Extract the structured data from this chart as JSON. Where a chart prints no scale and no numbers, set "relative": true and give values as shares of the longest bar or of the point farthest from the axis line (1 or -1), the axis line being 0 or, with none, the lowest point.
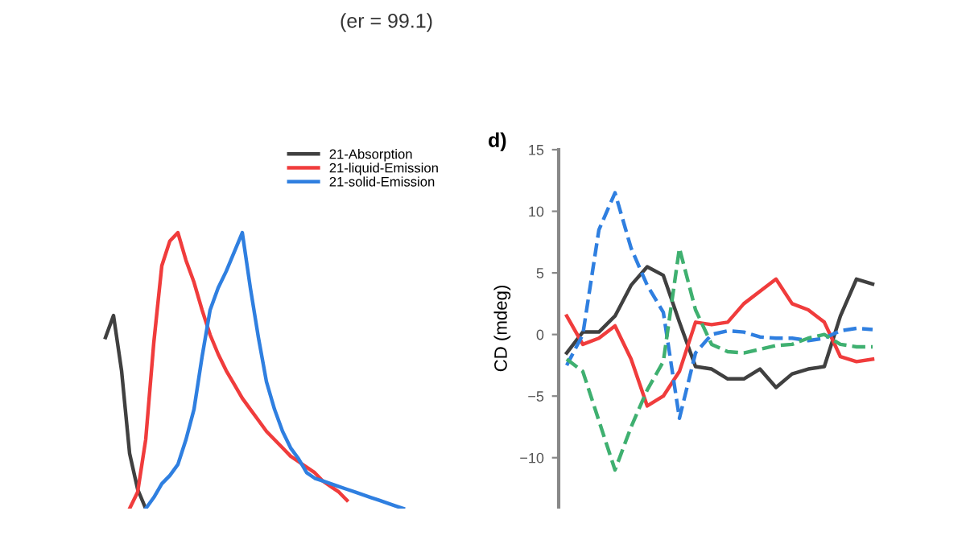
{
  "chart_data": [
    {
      "type": "line",
      "relative": true,
      "annotations": [
        "(er = 99.1)"
      ],
      "legend": "top right",
      "line_style": "solid",
      "marker": "none",
      "categories": [
        null,
        null,
        null,
        null,
        null,
        null,
        null,
        null,
        null,
        null,
        null,
        null,
        null,
        null,
        null,
        null,
        null,
        null,
        null,
        null,
        null,
        null,
        null,
        null,
        null,
        null,
        null,
        null,
        null,
        null,
        null,
        null,
        null,
        null,
        null,
        null,
        null,
        null
      ],
      "series": [
        {
          "name": "21-Absorption",
          "color": "#404040",
          "values": [
            0.62,
            0.7,
            0.5,
            0.2,
            0.07,
            0.0,
            null,
            null,
            null,
            null,
            null,
            null,
            null,
            null,
            null,
            null,
            null,
            null,
            null,
            null,
            null,
            null,
            null,
            null,
            null,
            null,
            null,
            null,
            null,
            null,
            null,
            null,
            null,
            null,
            null,
            null,
            null,
            null
          ]
        },
        {
          "name": "21-liquid-Emission",
          "color": "#f03c3c",
          "values": [
            null,
            null,
            null,
            0.0,
            0.06,
            0.25,
            0.6,
            0.88,
            0.97,
            1.0,
            0.9,
            0.82,
            0.72,
            0.63,
            0.56,
            0.5,
            0.45,
            0.4,
            0.36,
            0.32,
            0.28,
            0.25,
            0.22,
            0.19,
            0.17,
            0.15,
            0.13,
            0.1,
            0.08,
            0.06,
            0.03,
            null,
            null,
            null,
            null,
            null,
            null,
            null
          ]
        },
        {
          "name": "21-solid-Emission",
          "color": "#2f7fe0",
          "values": [
            null,
            null,
            null,
            null,
            null,
            0.0,
            0.04,
            0.09,
            0.12,
            0.16,
            0.25,
            0.36,
            0.55,
            0.72,
            0.8,
            0.86,
            0.93,
            1.0,
            0.8,
            0.62,
            0.46,
            0.36,
            0.28,
            0.22,
            0.18,
            0.13,
            0.11,
            0.1,
            0.09,
            0.08,
            0.07,
            0.06,
            0.05,
            0.04,
            0.03,
            0.02,
            0.01,
            0.0
          ]
        }
      ]
    },
    {
      "type": "line",
      "title": "d)",
      "ylabel": "CD (mdeg)",
      "ylim": [
        -14,
        15
      ],
      "legend": false,
      "marker": "none",
      "tick_labels": "y",
      "yticks": [
        15,
        10,
        5,
        0,
        {
          "value": -5,
          "label": "−5"
        },
        {
          "value": -10,
          "label": "−10"
        }
      ],
      "categories": [
        null,
        null,
        null,
        null,
        null,
        null,
        null,
        null,
        null,
        null,
        null,
        null,
        null,
        null,
        null,
        null,
        null,
        null,
        null,
        null
      ],
      "series": [
        {
          "color": "#404040",
          "line_style": "solid",
          "values": [
            -1.5,
            0.2,
            0.2,
            1.5,
            4.0,
            5.5,
            4.8,
            1.0,
            -2.6,
            -2.8,
            -3.6,
            -3.6,
            -2.8,
            -4.3,
            -3.2,
            -2.8,
            -2.6,
            1.5,
            4.5,
            4.1
          ]
        },
        {
          "color": "#f03c3c",
          "line_style": "solid",
          "values": [
            1.5,
            -0.8,
            -0.3,
            0.7,
            -2.0,
            -5.8,
            -5.0,
            -3.0,
            1.0,
            0.8,
            1.0,
            2.5,
            3.5,
            4.5,
            2.5,
            2.0,
            1.0,
            -1.8,
            -2.2,
            -2.0
          ]
        },
        {
          "color": "#2f7fe0",
          "line_style": "dashed",
          "values": [
            -2.5,
            0.0,
            8.5,
            11.5,
            7.0,
            4.0,
            1.8,
            -6.8,
            -1.5,
            0.0,
            0.3,
            0.2,
            -0.2,
            -0.3,
            -0.3,
            -0.5,
            -0.3,
            0.3,
            0.5,
            0.4
          ]
        },
        {
          "color": "#3fb070",
          "line_style": "dashed",
          "values": [
            -2.0,
            -3.0,
            -7.0,
            -11.0,
            -7.5,
            -4.5,
            -2.2,
            7.0,
            2.0,
            -0.8,
            -1.4,
            -1.5,
            -1.2,
            -0.9,
            -0.8,
            -0.3,
            0.0,
            -0.8,
            -1.0,
            -1.0
          ]
        }
      ]
    }
  ]
}
